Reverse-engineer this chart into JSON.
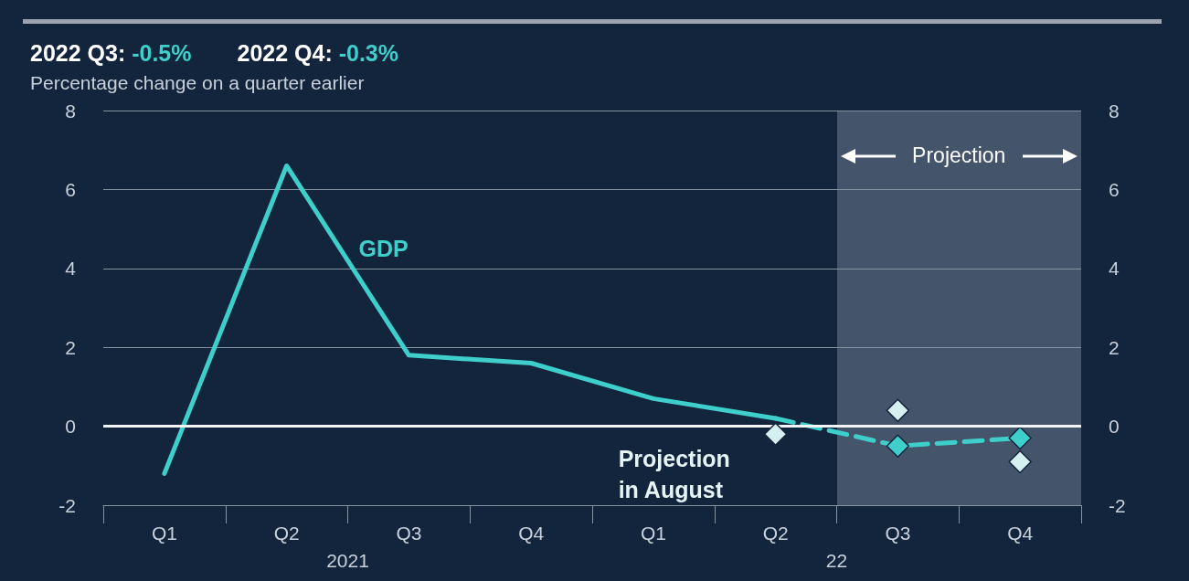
{
  "chart_data": {
    "type": "line",
    "title": "2022 Q3: -0.5%    2022 Q4: -0.3%",
    "subtitle": "Percentage change on a quarter earlier",
    "categories": [
      "Q1",
      "Q2",
      "Q3",
      "Q4",
      "Q1",
      "Q2",
      "Q3",
      "Q4"
    ],
    "series": [
      {
        "name": "GDP",
        "color": "#3ecfca",
        "values": [
          -1.2,
          6.6,
          1.8,
          1.6,
          0.7,
          0.2,
          null,
          null
        ]
      },
      {
        "color": "#3ecfca",
        "values": [
          null,
          null,
          null,
          null,
          null,
          0.2,
          -0.5,
          -0.3
        ],
        "line_style": "dashed",
        "marker": "diamond"
      },
      {
        "name": "Projection in August",
        "type": "scatter",
        "color": "#d6eff0",
        "values": [
          null,
          null,
          null,
          null,
          null,
          -0.2,
          0.4,
          -0.9
        ],
        "marker": "diamond"
      }
    ],
    "ylim": [
      -2,
      8
    ],
    "yticks": [
      -2,
      0,
      2,
      4,
      6,
      8
    ],
    "y2lim": [
      -2,
      8
    ],
    "y2ticks": [
      -2,
      0,
      2,
      4,
      6,
      8
    ],
    "grid": "y",
    "line_style": "solid",
    "marker": "none",
    "ref_lines": [
      {
        "axis": "y",
        "value": 0,
        "color": "#f2f4f6"
      }
    ],
    "annotations": [
      "2021",
      "22",
      "Projection"
    ]
  }
}
